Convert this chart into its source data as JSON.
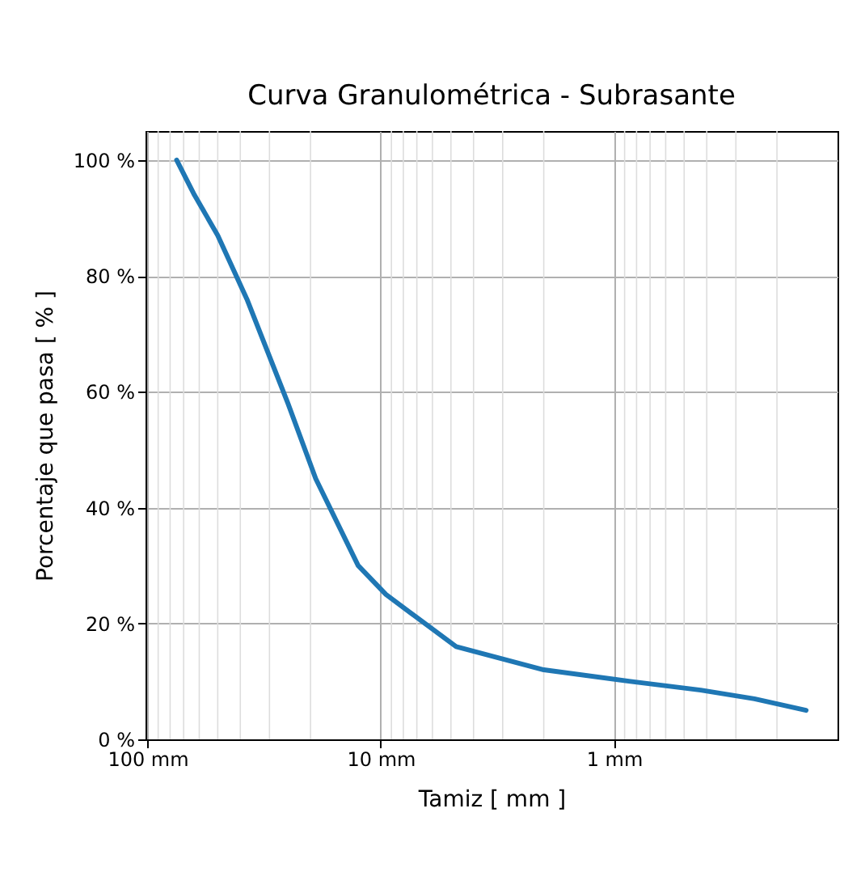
{
  "chart_data": {
    "type": "line",
    "title": "Curva Granulométrica - Subrasante",
    "xlabel": "Tamiz [ mm ]",
    "ylabel": "Porcentaje que pasa [ % ]",
    "log": "x",
    "grid": true,
    "line_style": "solid",
    "marker": "none",
    "xlim": [
      102,
      0.11
    ],
    "xticks": [
      {
        "value": 100,
        "label": "100 mm"
      },
      {
        "value": 10,
        "label": "10 mm"
      },
      {
        "value": 1,
        "label": "1 mm"
      }
    ],
    "ylim": [
      0,
      105
    ],
    "yticks": [
      {
        "value": 0,
        "label": "0 %"
      },
      {
        "value": 20,
        "label": "20 %"
      },
      {
        "value": 40,
        "label": "40 %"
      },
      {
        "value": 60,
        "label": "60 %"
      },
      {
        "value": 80,
        "label": "80 %"
      },
      {
        "value": 100,
        "label": "100 %"
      }
    ],
    "x": [
      75,
      63,
      50,
      37.5,
      25,
      19,
      12.5,
      9.5,
      4.75,
      2,
      0.85,
      0.425,
      0.25,
      0.15
    ],
    "series": [
      {
        "color": "#1f77b4",
        "values": [
          100,
          94,
          87,
          76,
          58,
          45,
          30,
          25,
          16,
          12,
          10,
          8.5,
          7,
          5
        ]
      }
    ]
  }
}
